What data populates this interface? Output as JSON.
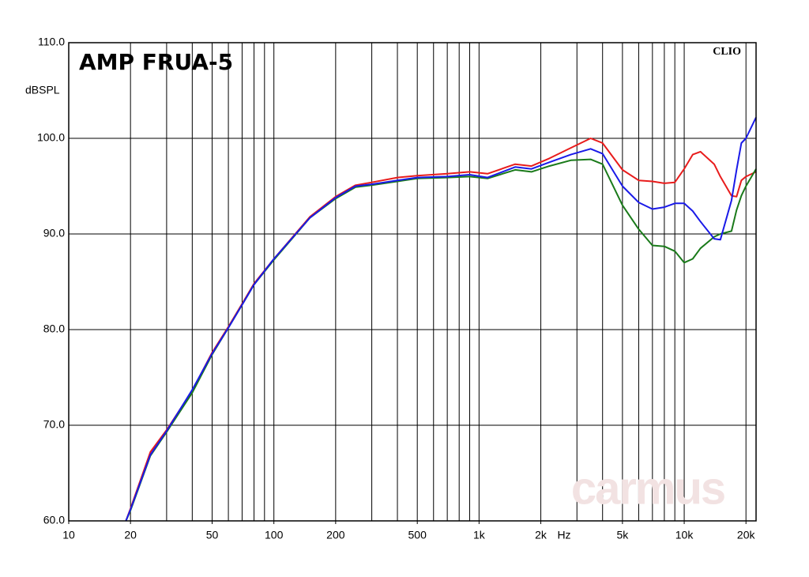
{
  "chart_data": {
    "type": "line",
    "title": "AMP FRUA-5",
    "y_label": "dBSPL",
    "x_label": "Hz",
    "annotation": "CLIO",
    "watermark": "carmus",
    "log_x": true,
    "grid": true,
    "xlim": [
      10,
      22400
    ],
    "ylim": [
      60,
      110
    ],
    "yticks": [
      {
        "value": 60,
        "label": "60.0"
      },
      {
        "value": 70,
        "label": "70.0"
      },
      {
        "value": 80,
        "label": "80.0"
      },
      {
        "value": 90,
        "label": "90.0"
      },
      {
        "value": 100,
        "label": "100.0"
      },
      {
        "value": 110,
        "label": "110.0"
      }
    ],
    "xticks": [
      10,
      20,
      50,
      100,
      200,
      500,
      {
        "value": 1000,
        "label": "1k"
      },
      {
        "value": 2000,
        "label": "2k"
      },
      {
        "value": 5000,
        "label": "5k"
      },
      {
        "value": 10000,
        "label": "10k"
      },
      {
        "value": 20000,
        "label": "20k"
      }
    ],
    "xgrid": [
      20,
      30,
      40,
      50,
      60,
      70,
      80,
      90,
      100,
      200,
      300,
      400,
      500,
      600,
      700,
      800,
      900,
      1000,
      2000,
      3000,
      4000,
      5000,
      6000,
      7000,
      8000,
      9000,
      10000,
      20000
    ],
    "x": [
      19,
      20,
      25,
      30,
      40,
      50,
      60,
      70,
      80,
      100,
      150,
      200,
      250,
      300,
      400,
      500,
      700,
      900,
      1100,
      1500,
      1800,
      2200,
      2800,
      3500,
      4000,
      5000,
      6000,
      7000,
      8000,
      9000,
      10000,
      11000,
      12000,
      14000,
      15000,
      17000,
      18000,
      19000,
      20000,
      22400
    ],
    "series": [
      {
        "color": "#e81c1c",
        "values": [
          60,
          61.3,
          67.2,
          69.5,
          73.6,
          77.6,
          80.3,
          82.7,
          84.8,
          87.4,
          91.8,
          93.9,
          95.1,
          95.4,
          95.9,
          96.1,
          96.3,
          96.5,
          96.3,
          97.3,
          97.1,
          97.9,
          99.0,
          100.0,
          99.5,
          96.7,
          95.6,
          95.5,
          95.3,
          95.4,
          96.8,
          98.3,
          98.6,
          97.3,
          96.0,
          94.0,
          93.9,
          95.6,
          96.0,
          96.5
        ]
      },
      {
        "color": "#1a7a1a",
        "values": [
          60,
          61.1,
          66.8,
          69.3,
          73.4,
          77.4,
          80.2,
          82.6,
          84.7,
          87.3,
          91.7,
          93.7,
          94.9,
          95.1,
          95.5,
          95.8,
          95.9,
          96.0,
          95.8,
          96.7,
          96.5,
          97.1,
          97.7,
          97.8,
          97.3,
          93.0,
          90.5,
          88.8,
          88.7,
          88.2,
          87.0,
          87.4,
          88.5,
          89.7,
          90.0,
          90.3,
          92.5,
          94.0,
          95.0,
          96.8
        ]
      },
      {
        "color": "#1a1ae8",
        "values": [
          60,
          61.2,
          66.9,
          69.4,
          73.7,
          77.5,
          80.2,
          82.6,
          84.7,
          87.4,
          91.7,
          93.8,
          95.0,
          95.2,
          95.6,
          95.9,
          96.0,
          96.2,
          95.9,
          97.0,
          96.8,
          97.5,
          98.3,
          98.9,
          98.4,
          95.0,
          93.3,
          92.6,
          92.8,
          93.2,
          93.2,
          92.4,
          91.3,
          89.5,
          89.4,
          93.5,
          96.7,
          99.5,
          100.0,
          102.2
        ]
      }
    ]
  }
}
